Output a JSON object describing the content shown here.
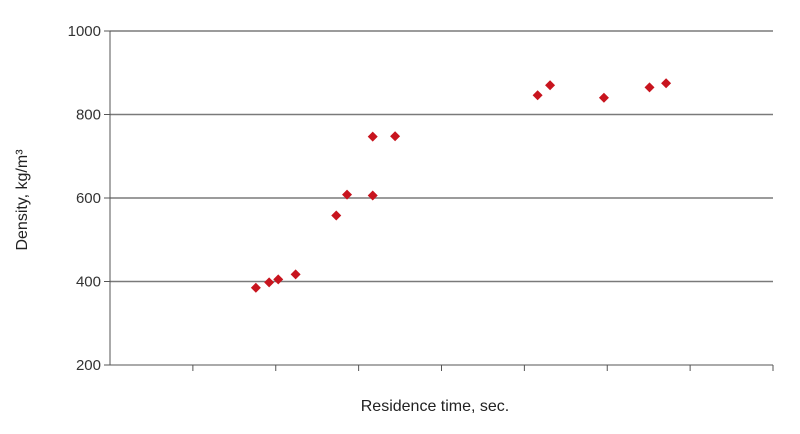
{
  "chart_data": {
    "type": "scatter",
    "title": "",
    "xlabel": "Residence time, sec.",
    "ylabel": "Density, kg/m³",
    "ylim": [
      200,
      1000
    ],
    "yticks": [
      200,
      400,
      600,
      800,
      1000
    ],
    "x_tick_count": 8,
    "grid": true,
    "marker": "diamond",
    "marker_color": "#c8141e",
    "series": [
      {
        "points": [
          {
            "x": 1.76,
            "y": 385
          },
          {
            "x": 1.92,
            "y": 398
          },
          {
            "x": 2.03,
            "y": 405
          },
          {
            "x": 2.24,
            "y": 417
          },
          {
            "x": 2.73,
            "y": 558
          },
          {
            "x": 2.86,
            "y": 608
          },
          {
            "x": 3.17,
            "y": 747
          },
          {
            "x": 3.17,
            "y": 606
          },
          {
            "x": 3.44,
            "y": 748
          },
          {
            "x": 5.16,
            "y": 846
          },
          {
            "x": 5.31,
            "y": 870
          },
          {
            "x": 5.96,
            "y": 840
          },
          {
            "x": 6.51,
            "y": 865
          },
          {
            "x": 6.71,
            "y": 875
          }
        ]
      }
    ]
  }
}
